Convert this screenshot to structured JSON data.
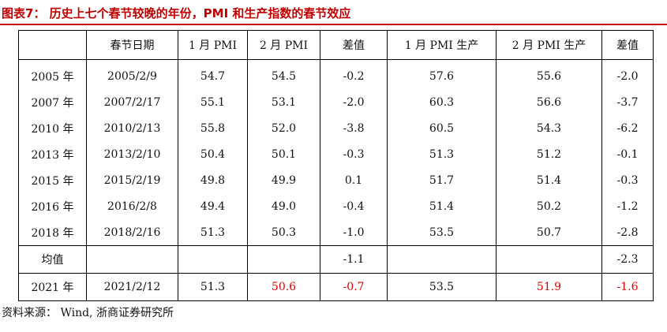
{
  "title": "图表7： 历史上七个春节较晚的年份，PMI 和生产指数的春节效应",
  "columns": [
    "",
    "春节日期",
    "1 月 PMI",
    "2 月 PMI",
    "差值",
    "1 月 PMI 生产",
    "2 月 PMI 生产",
    "差值"
  ],
  "rows": [
    [
      "2005 年",
      "2005/2/9",
      "54.7",
      "54.5",
      "-0.2",
      "57.6",
      "55.6",
      "-2.0"
    ],
    [
      "2007 年",
      "2007/2/17",
      "55.1",
      "53.1",
      "-2.0",
      "60.3",
      "56.6",
      "-3.7"
    ],
    [
      "2010 年",
      "2010/2/13",
      "55.8",
      "52.0",
      "-3.8",
      "60.5",
      "54.3",
      "-6.2"
    ],
    [
      "2013 年",
      "2013/2/10",
      "50.4",
      "50.1",
      "-0.3",
      "51.3",
      "51.2",
      "-0.1"
    ],
    [
      "2015 年",
      "2015/2/19",
      "49.8",
      "49.9",
      "0.1",
      "51.7",
      "51.4",
      "-0.3"
    ],
    [
      "2016 年",
      "2016/2/8",
      "49.4",
      "49.0",
      "-0.4",
      "51.4",
      "50.2",
      "-1.2"
    ],
    [
      "2018 年",
      "2018/2/16",
      "51.3",
      "50.3",
      "-1.0",
      "53.5",
      "50.7",
      "-2.8"
    ]
  ],
  "average": [
    "均值",
    "",
    "",
    "",
    "-1.1",
    "",
    "",
    "-2.3"
  ],
  "current": [
    "2021 年",
    "2021/2/12",
    "51.3",
    "50.6",
    "-0.7",
    "53.5",
    "51.9",
    "-1.6"
  ],
  "highlight_color": "#e00000",
  "title_color": "#c00000",
  "source": "资料来源： Wind, 浙商证券研究所"
}
